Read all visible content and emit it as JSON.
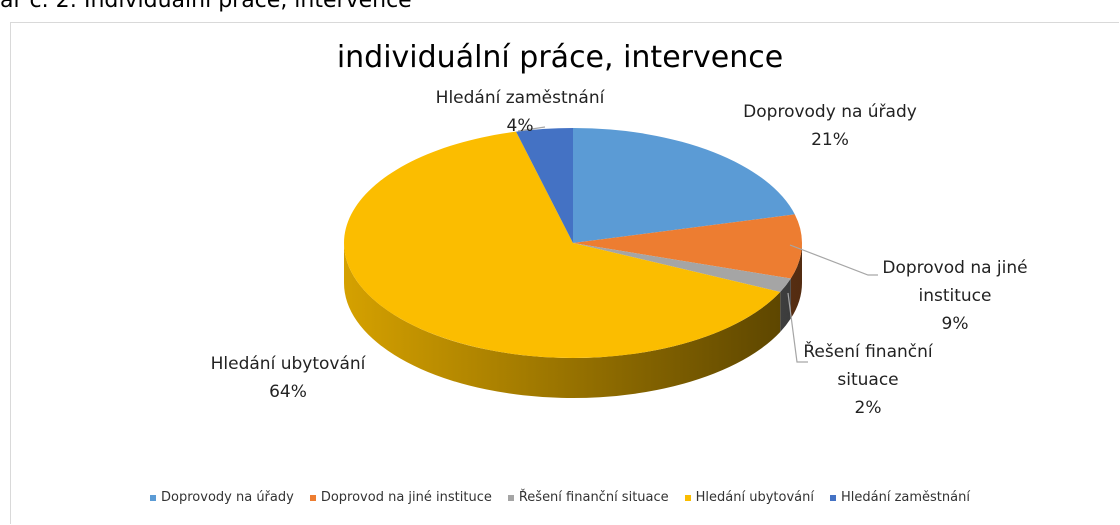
{
  "caption": "ar č. 2: Individuální práce, intervence",
  "chart_data": {
    "type": "pie",
    "title": "individuální práce, intervence",
    "categories": [
      "Doprovody na úřady",
      "Doprovod na jiné instituce",
      "Řešení finanční situace",
      "Hledání ubytování",
      "Hledání zaměstnání"
    ],
    "values": [
      21,
      9,
      2,
      64,
      4
    ],
    "value_labels": [
      "21%",
      "9%",
      "2%",
      "64%",
      "4%"
    ],
    "colors": [
      "#5b9bd5",
      "#ed7d31",
      "#a5a5a5",
      "#fbbd00",
      "#4472c4"
    ],
    "legend": "bottom"
  }
}
